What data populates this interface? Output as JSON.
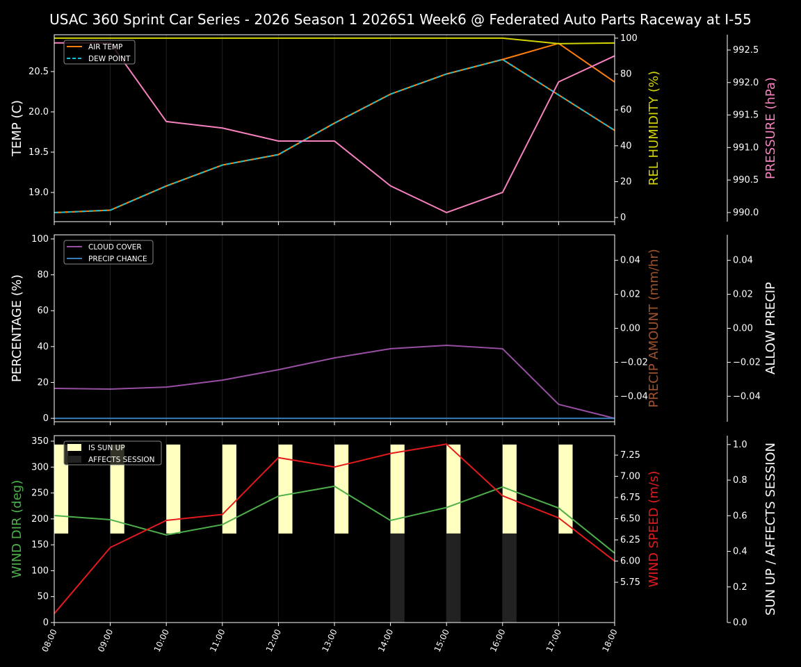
{
  "chart_data": {
    "title": "USAC 360 Sprint Car Series - 2026 Season 1 2026S1 Week6 @ Federated Auto Parts Raceway at I-55",
    "x": [
      "08:00",
      "09:00",
      "10:00",
      "11:00",
      "12:00",
      "13:00",
      "14:00",
      "15:00",
      "16:00",
      "17:00",
      "18:00"
    ],
    "colors": {
      "air_temp": "#ff7f0e",
      "dew_point": "#17becf",
      "humidity": "#d4d400",
      "pressure": "#f781bf",
      "cloud_cover": "#984ea3",
      "precip_chance": "#377eb8",
      "precip_amount": "#a0522d",
      "wind_dir": "#4daf4a",
      "wind_speed": "#e41a1c",
      "sun_up": "#ffffc0",
      "affects_session": "#222222"
    },
    "panels": [
      {
        "type": "line",
        "axes": {
          "left": {
            "label": "TEMP (C)",
            "range": [
              18.638,
              20.957
            ],
            "ticks": [
              19.0,
              19.5,
              20.0,
              20.5
            ],
            "tick_labels": [
              "19.0",
              "19.5",
              "20.0",
              "20.5"
            ],
            "color": "#ffffff"
          },
          "right1": {
            "label": "REL HUMIDITY (%)",
            "range": [
              -2.3,
              101.9
            ],
            "ticks": [
              0,
              20,
              40,
              60,
              80,
              100
            ],
            "tick_labels": [
              "0",
              "20",
              "40",
              "60",
              "80",
              "100"
            ],
            "color": "#d4d400"
          },
          "right2": {
            "label": "PRESSURE (hPa)",
            "range": [
              989.86,
              992.735
            ],
            "ticks": [
              990.0,
              990.5,
              991.0,
              991.5,
              992.0,
              992.5
            ],
            "tick_labels": [
              "990.0",
              "990.5",
              "991.0",
              "991.5",
              "992.0",
              "992.5"
            ],
            "color": "#f781bf"
          }
        },
        "legend": {
          "placement": "upper-left",
          "entries": [
            "AIR TEMP",
            "DEW POINT"
          ]
        },
        "series": [
          {
            "name": "AIR TEMP",
            "axis": "left",
            "color": "#ff7f0e",
            "dashed": false,
            "values": [
              18.75,
              18.78,
              19.08,
              19.34,
              19.47,
              19.86,
              20.22,
              20.47,
              20.65,
              20.85,
              20.37
            ]
          },
          {
            "name": "DEW POINT",
            "axis": "left",
            "color": "#17becf",
            "dashed": true,
            "values": [
              18.75,
              18.78,
              19.08,
              19.34,
              19.47,
              19.86,
              20.22,
              20.47,
              20.65,
              20.21,
              19.77
            ]
          },
          {
            "axis": "right1",
            "color": "#d4d400",
            "dashed": false,
            "values": [
              100,
              100,
              100,
              100,
              100,
              100,
              100,
              100,
              100,
              96.9,
              97.3
            ]
          },
          {
            "axis": "right2",
            "color": "#f781bf",
            "dashed": false,
            "values": [
              992.61,
              992.61,
              991.4,
              991.3,
              991.1,
              991.1,
              990.41,
              990.0,
              990.31,
              992.01,
              992.41
            ]
          }
        ]
      },
      {
        "type": "line",
        "axes": {
          "left": {
            "label": "PERCENTAGE (%)",
            "range": [
              -1.9,
              102.3
            ],
            "ticks": [
              0,
              20,
              40,
              60,
              80,
              100
            ],
            "tick_labels": [
              "0",
              "20",
              "40",
              "60",
              "80",
              "100"
            ],
            "color": "#ffffff"
          },
          "right1": {
            "label": "PRECIP AMOUNT (mm/hr)",
            "range": [
              -0.055,
              0.055
            ],
            "ticks": [
              -0.04,
              -0.02,
              0,
              0.02,
              0.04
            ],
            "tick_labels": [
              "−0.04",
              "−0.02",
              "0.00",
              "0.02",
              "0.04"
            ],
            "color": "#a0522d"
          },
          "right2": {
            "label": "ALLOW PRECIP",
            "range": [
              -0.055,
              0.055
            ],
            "ticks": [
              -0.04,
              -0.02,
              0,
              0.02,
              0.04
            ],
            "tick_labels": [
              "−0.04",
              "−0.02",
              "0.00",
              "0.02",
              "0.04"
            ],
            "color": "#ffffff"
          }
        },
        "legend": {
          "placement": "upper-left",
          "entries": [
            "CLOUD COVER",
            "PRECIP CHANCE"
          ]
        },
        "series": [
          {
            "name": "CLOUD COVER",
            "axis": "left",
            "color": "#984ea3",
            "dashed": false,
            "values": [
              16.7,
              16.3,
              17.4,
              21.3,
              27.1,
              33.7,
              38.8,
              40.7,
              38.8,
              7.8,
              0
            ]
          },
          {
            "name": "PRECIP CHANCE",
            "axis": "left",
            "color": "#377eb8",
            "dashed": false,
            "values": [
              0,
              0,
              0,
              0,
              0,
              0,
              0,
              0,
              0,
              0,
              0
            ]
          }
        ]
      },
      {
        "type": "line+bar",
        "axes": {
          "left": {
            "label": "WIND DIR (deg)",
            "range": [
              0,
              360.7
            ],
            "ticks": [
              0,
              50,
              100,
              150,
              200,
              250,
              300,
              350
            ],
            "tick_labels": [
              "0",
              "50",
              "100",
              "150",
              "200",
              "250",
              "300",
              "350"
            ],
            "color": "#4daf4a"
          },
          "right1": {
            "label": "WIND SPEED (m/s)",
            "range": [
              5.275,
              7.48
            ],
            "ticks": [
              5.75,
              6.0,
              6.25,
              6.5,
              6.75,
              7.0,
              7.25
            ],
            "tick_labels": [
              "5.75",
              "6.00",
              "6.25",
              "6.50",
              "6.75",
              "7.00",
              "7.25"
            ],
            "color": "#e41a1c"
          },
          "right2": {
            "label": "SUN UP / AFFECTS SESSION",
            "range": [
              0,
              1.05
            ],
            "ticks": [
              0,
              0.2,
              0.4,
              0.6,
              0.8,
              1.0
            ],
            "tick_labels": [
              "0.0",
              "0.2",
              "0.4",
              "0.6",
              "0.8",
              "1.0"
            ],
            "color": "#ffffff"
          }
        },
        "legend": {
          "placement": "upper-left",
          "entries": [
            "IS SUN UP",
            "AFFECTS SESSION"
          ]
        },
        "bars": [
          {
            "name": "IS SUN UP",
            "color": "#ffffc0",
            "base": 0.5,
            "values": [
              1,
              1,
              1,
              1,
              1,
              1,
              1,
              1,
              1,
              1,
              0
            ]
          },
          {
            "name": "AFFECTS SESSION",
            "color": "#222222",
            "base": 0,
            "values": [
              0,
              0,
              0,
              0,
              0,
              0,
              1,
              1,
              1,
              0,
              0
            ]
          }
        ],
        "series": [
          {
            "axis": "left",
            "color": "#4daf4a",
            "dashed": false,
            "values": [
              206.5,
              198.5,
              169,
              189,
              244,
              263,
              197,
              222,
              261.5,
              221,
              134
            ]
          },
          {
            "axis": "right1",
            "color": "#e41a1c",
            "dashed": false,
            "values": [
              5.38,
              6.16,
              6.48,
              6.55,
              7.22,
              7.11,
              7.27,
              7.38,
              6.77,
              6.51,
              6.0
            ]
          }
        ]
      }
    ]
  }
}
